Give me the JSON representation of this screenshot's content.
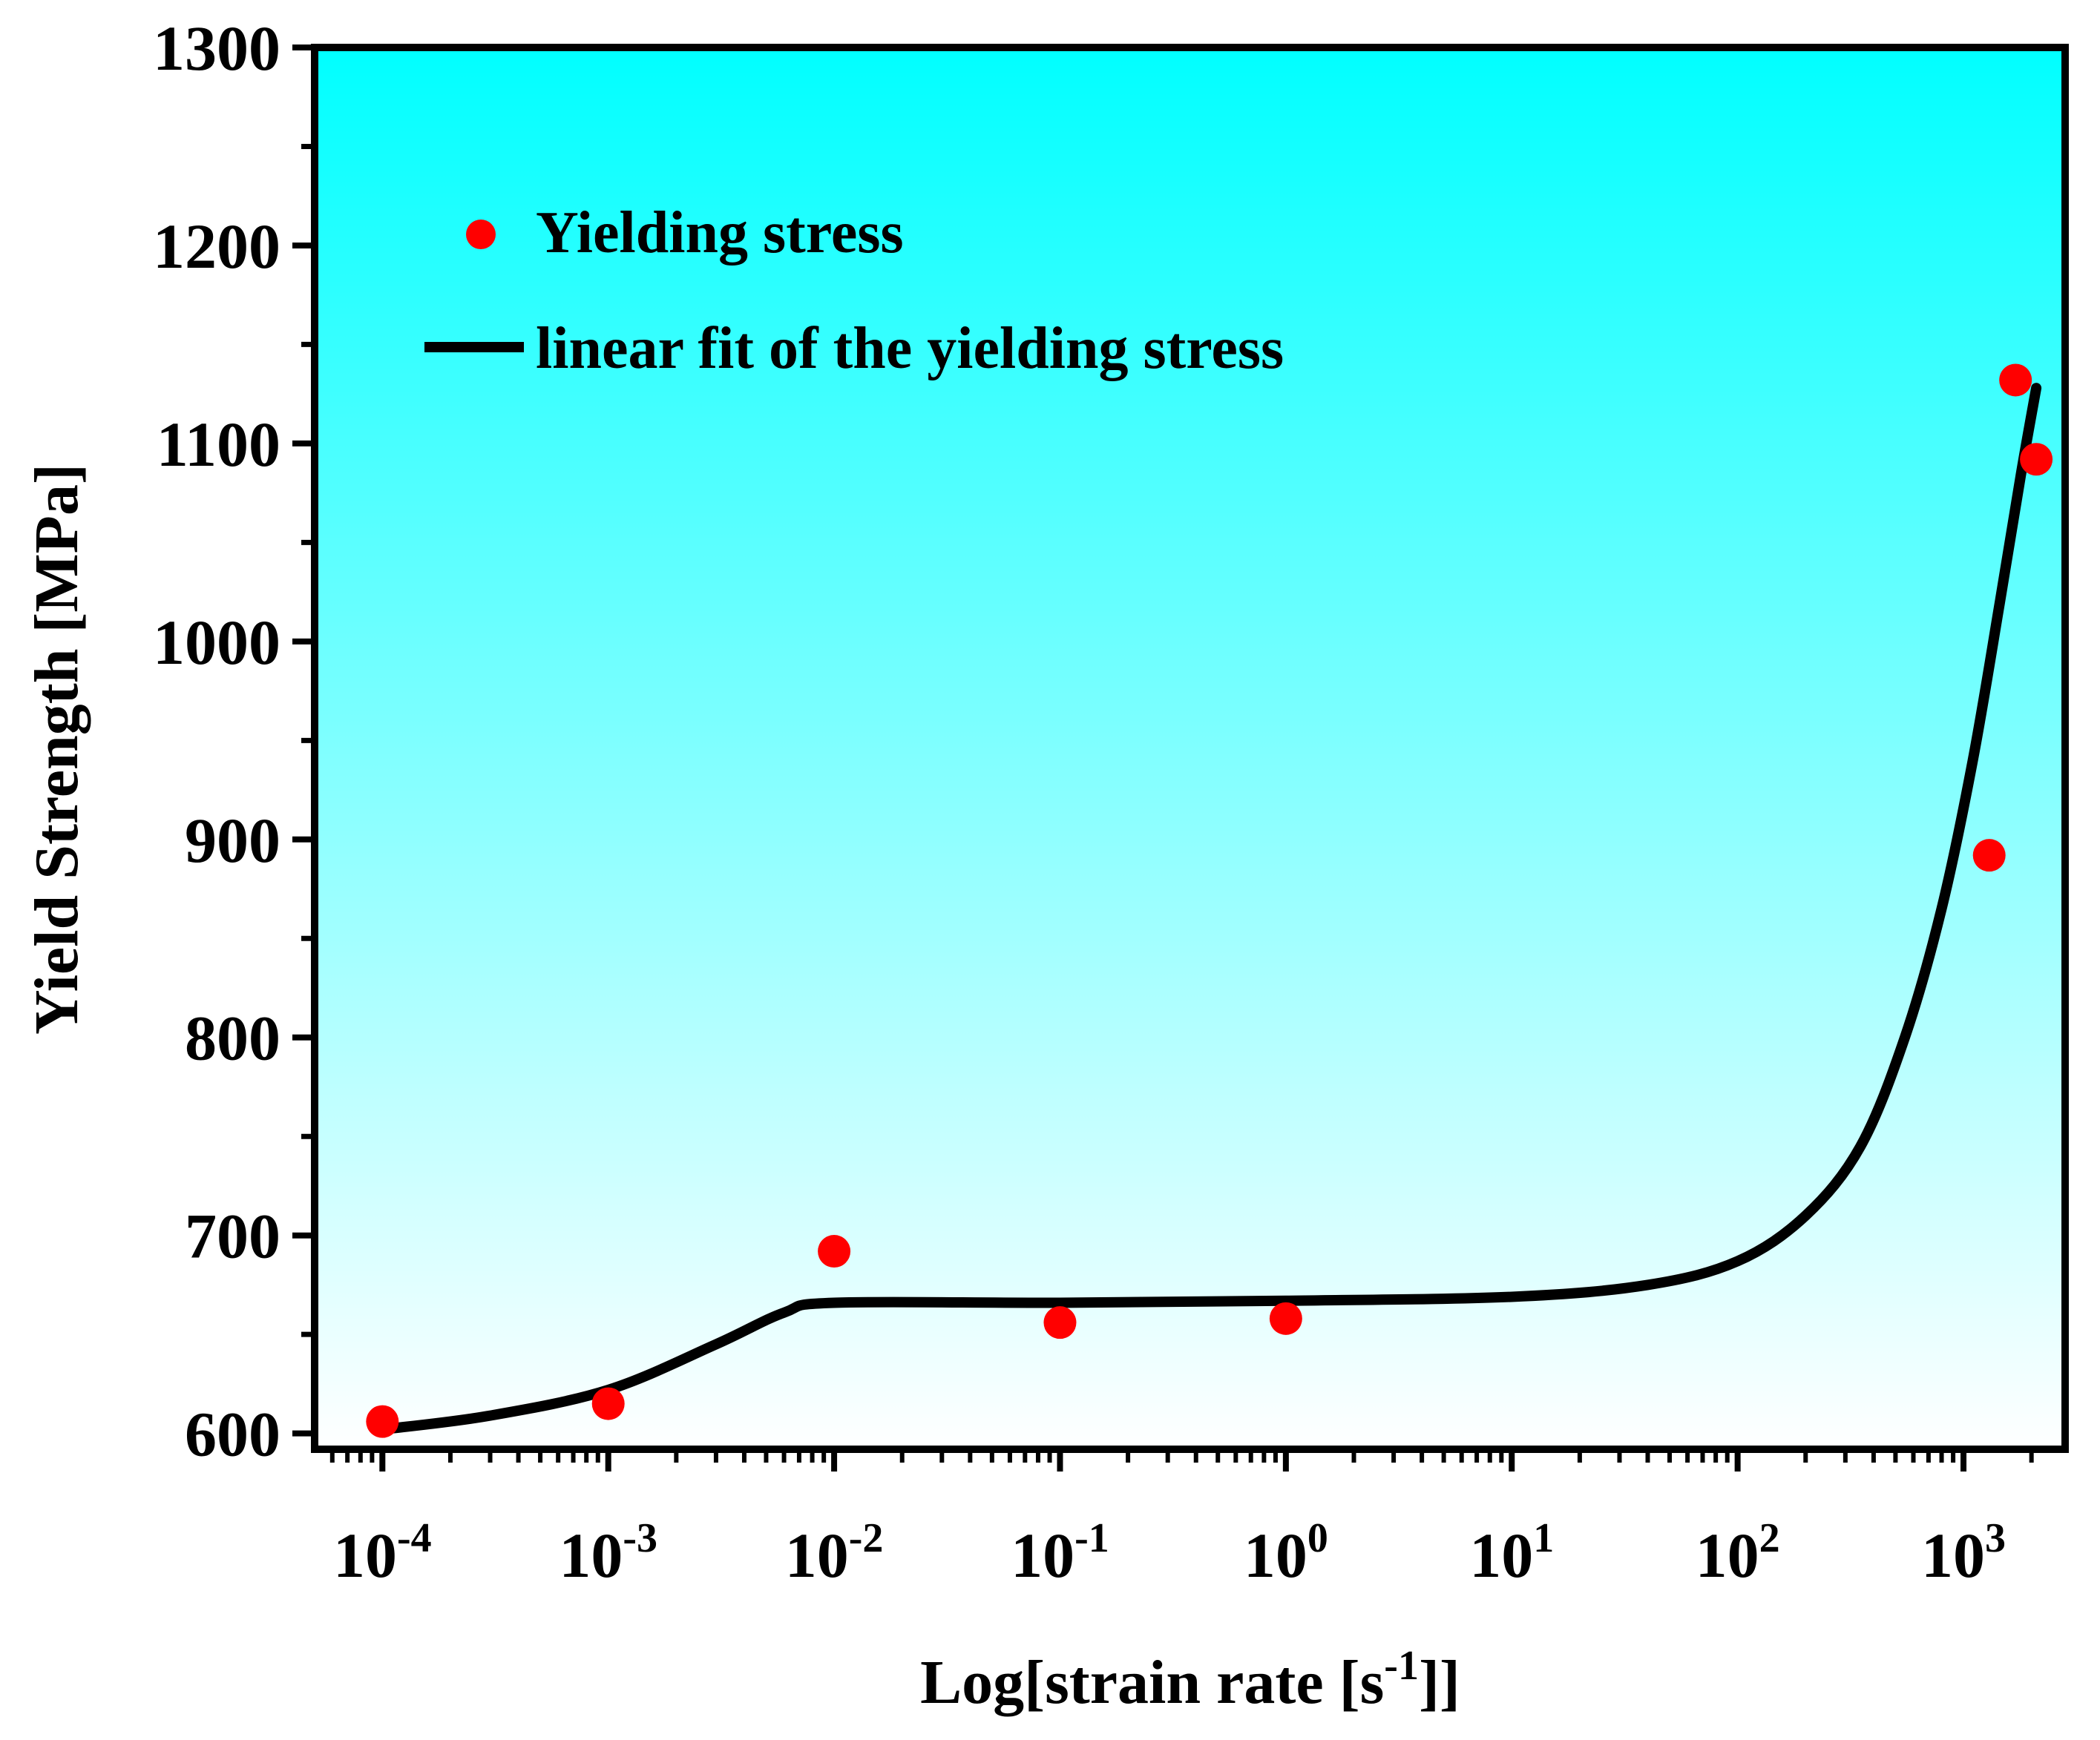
{
  "chart_data": {
    "type": "scatter",
    "title": "",
    "xlabel": "Log[strain rate [s",
    "xlabel_sup": "-1",
    "xlabel_suffix": "]]",
    "ylabel": "Yield Strength [MPa]",
    "xscale": "log",
    "xlim_log10": [
      -4.3,
      3.45
    ],
    "ylim": [
      592,
      1300
    ],
    "grid": false,
    "legend_position": "top-left",
    "background_gradient": [
      "#00ffff",
      "#ffffff"
    ],
    "y_ticks": [
      {
        "value": 600,
        "label": "600"
      },
      {
        "value": 700,
        "label": "700"
      },
      {
        "value": 800,
        "label": "800"
      },
      {
        "value": 900,
        "label": "900"
      },
      {
        "value": 1000,
        "label": "1000"
      },
      {
        "value": 1100,
        "label": "1100"
      },
      {
        "value": 1200,
        "label": "1200"
      },
      {
        "value": 1300,
        "label": "1300"
      }
    ],
    "x_ticks": [
      {
        "exp": -4,
        "base": "10",
        "sup": "-4"
      },
      {
        "exp": -3,
        "base": "10",
        "sup": "-3"
      },
      {
        "exp": -2,
        "base": "10",
        "sup": "-2"
      },
      {
        "exp": -1,
        "base": "10",
        "sup": "-1"
      },
      {
        "exp": 0,
        "base": "10",
        "sup": "0"
      },
      {
        "exp": 1,
        "base": "10",
        "sup": "1"
      },
      {
        "exp": 2,
        "base": "10",
        "sup": "2"
      },
      {
        "exp": 3,
        "base": "10",
        "sup": "3"
      }
    ],
    "series": [
      {
        "name": "Yielding stress",
        "kind": "scatter",
        "color": "#ff0000",
        "points": [
          {
            "x": 0.0001,
            "y": 606
          },
          {
            "x": 0.001,
            "y": 615
          },
          {
            "x": 0.01,
            "y": 692
          },
          {
            "x": 0.1,
            "y": 656
          },
          {
            "x": 1,
            "y": 658
          },
          {
            "x": 1300,
            "y": 892
          },
          {
            "x": 1700,
            "y": 1132
          },
          {
            "x": 2100,
            "y": 1092
          }
        ]
      },
      {
        "name": "linear fit of the yielding stress",
        "kind": "line",
        "color": "#000000",
        "points": [
          {
            "x": 0.0001,
            "y": 602
          },
          {
            "x": 0.0003,
            "y": 609
          },
          {
            "x": 0.001,
            "y": 622
          },
          {
            "x": 0.003,
            "y": 645
          },
          {
            "x": 0.006,
            "y": 661
          },
          {
            "x": 0.01,
            "y": 666
          },
          {
            "x": 0.1,
            "y": 666
          },
          {
            "x": 1,
            "y": 667
          },
          {
            "x": 10,
            "y": 669
          },
          {
            "x": 40,
            "y": 675
          },
          {
            "x": 100,
            "y": 687
          },
          {
            "x": 200,
            "y": 710
          },
          {
            "x": 350,
            "y": 745
          },
          {
            "x": 550,
            "y": 800
          },
          {
            "x": 800,
            "y": 865
          },
          {
            "x": 1100,
            "y": 940
          },
          {
            "x": 1450,
            "y": 1020
          },
          {
            "x": 1800,
            "y": 1085
          },
          {
            "x": 2100,
            "y": 1128
          }
        ]
      }
    ]
  }
}
